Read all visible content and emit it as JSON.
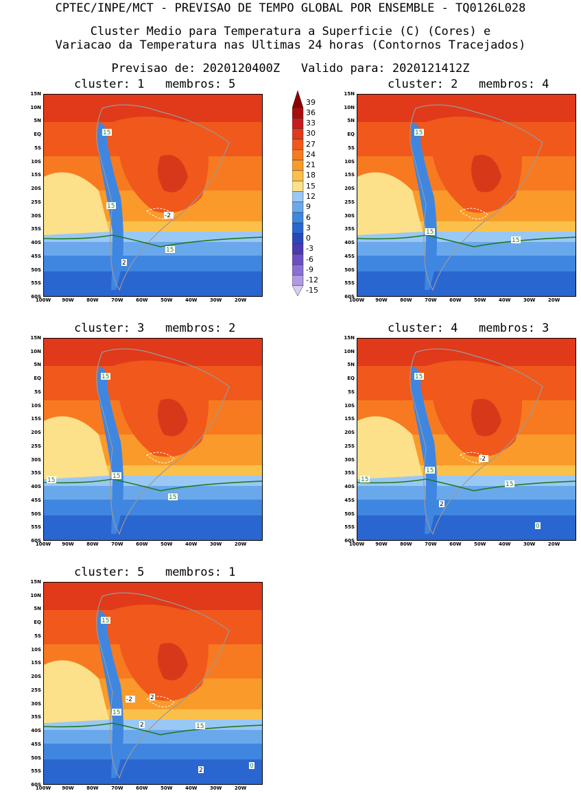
{
  "header": {
    "line1": "CPTEC/INPE/MCT - PREVISAO DE TEMPO GLOBAL POR ENSEMBLE - TQ0126L028",
    "line2": "Cluster Medio para Temperatura a Superficie (C) (Cores) e",
    "line3": "Variacao da Temperatura nas Ultimas 24 horas (Contornos Tracejados)",
    "line4": "Previsao de: 2020120400Z   Valido para: 2020121412Z"
  },
  "axis": {
    "lat_labels": [
      "15N",
      "10N",
      "5N",
      "EQ",
      "5S",
      "10S",
      "15S",
      "20S",
      "25S",
      "30S",
      "35S",
      "40S",
      "45S",
      "50S",
      "55S",
      "60S"
    ],
    "lon_labels": [
      "100W",
      "90W",
      "80W",
      "70W",
      "60W",
      "50W",
      "40W",
      "30W",
      "20W"
    ]
  },
  "colorbar": {
    "labels": [
      "39",
      "36",
      "33",
      "30",
      "27",
      "24",
      "21",
      "18",
      "15",
      "12",
      "9",
      "6",
      "3",
      "0",
      "-3",
      "-6",
      "-9",
      "-12",
      "-15"
    ],
    "colors": [
      "#8b0000",
      "#a80e0e",
      "#c81c1c",
      "#e03a1a",
      "#f0581c",
      "#f87a20",
      "#fa9a2a",
      "#fbc04a",
      "#fde08a",
      "#9ac8f4",
      "#6aa8ec",
      "#3f86e0",
      "#2a66d0",
      "#2848b8",
      "#4a3ab0",
      "#6a50c4",
      "#8a70d4",
      "#b09ae0",
      "#d8ccf0"
    ]
  },
  "panels": [
    {
      "title": "cluster: 1   membros: 5",
      "labels": [
        "15",
        "15",
        "15",
        "-2",
        "2"
      ]
    },
    {
      "title": "cluster: 2   membros: 4",
      "labels": [
        "15",
        "15",
        "15"
      ]
    },
    {
      "title": "cluster: 3   membros: 2",
      "labels": [
        "15",
        "15",
        "15",
        "15"
      ]
    },
    {
      "title": "cluster: 4   membros: 3",
      "labels": [
        "15",
        "15",
        "15",
        "15",
        "-2",
        "2",
        "0"
      ]
    },
    {
      "title": "cluster: 5   membros: 1",
      "labels": [
        "15",
        "15",
        "15",
        "-2",
        "2",
        "2",
        "2",
        "0"
      ]
    }
  ]
}
